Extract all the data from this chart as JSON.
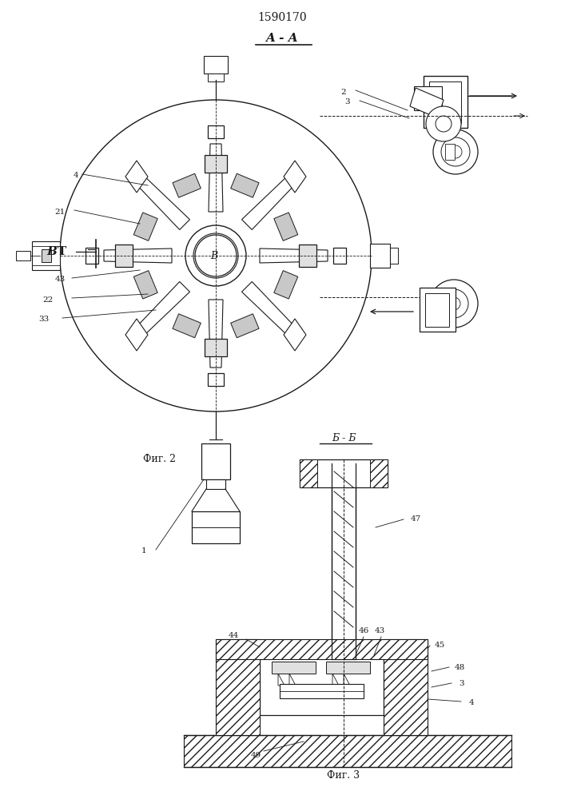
{
  "title": "1590170",
  "section_label_aa": "A - A",
  "section_label_bb": "Б - Б",
  "fig2_label": "Фиг. 2",
  "fig3_label": "Фиг. 3",
  "bg_color": "#ffffff",
  "line_color": "#1a1a1a",
  "hatch_color": "#333333",
  "label_B": "В",
  "label_B_section": "Б - Б",
  "numbers": {
    "top_left_labels": [
      "2",
      "3"
    ],
    "left_labels": [
      "4",
      "21",
      "43",
      "22",
      "33"
    ],
    "bottom_label": "1",
    "right_labels": [
      "47",
      "46",
      "43",
      "45",
      "48",
      "3",
      "4",
      "49"
    ],
    "center_label": "В"
  }
}
